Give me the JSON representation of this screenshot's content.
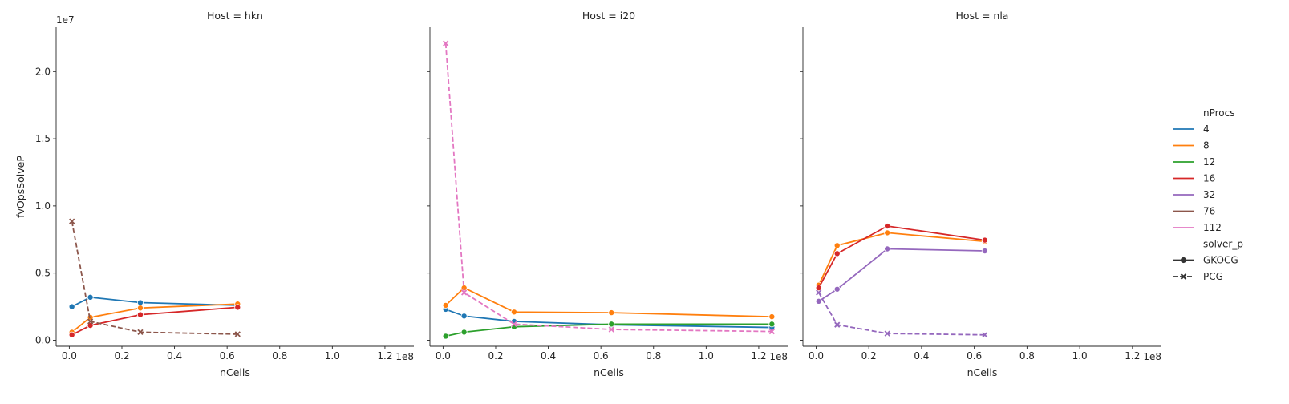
{
  "chart_data": {
    "type": "line",
    "sharey": true,
    "y_multiplier": "1e7",
    "x_multiplier": "1e8",
    "xlabel": "nCells",
    "ylabel": "fvOpsSolveP",
    "ylim": [
      -0.045,
      2.33
    ],
    "xlim": [
      -0.05,
      1.31
    ],
    "y_ticks": [
      "0.0",
      "0.5",
      "1.0",
      "1.5",
      "2.0"
    ],
    "x_ticks": [
      "0.0",
      "0.2",
      "0.4",
      "0.6",
      "0.8",
      "1.0",
      "1.2"
    ],
    "legend": {
      "placement": "right",
      "hue_title": "nProcs",
      "hue_entries": [
        {
          "label": "4",
          "color": "#1f77b4"
        },
        {
          "label": "8",
          "color": "#ff7f0e"
        },
        {
          "label": "12",
          "color": "#2ca02c"
        },
        {
          "label": "16",
          "color": "#d62728"
        },
        {
          "label": "32",
          "color": "#9467bd"
        },
        {
          "label": "76",
          "color": "#8c564b"
        },
        {
          "label": "112",
          "color": "#e377c2"
        }
      ],
      "style_title": "solver_p",
      "style_entries": [
        {
          "label": "GKOCG",
          "marker": "circle",
          "dash": "solid"
        },
        {
          "label": "PCG",
          "marker": "x",
          "dash": "dashed"
        }
      ]
    },
    "panels": [
      {
        "title": "Host = hkn",
        "series": [
          {
            "nProcs": "4",
            "solver": "GKOCG",
            "x": [
              0.01,
              0.08,
              0.27,
              0.64
            ],
            "y": [
              0.25,
              0.32,
              0.28,
              0.26
            ]
          },
          {
            "nProcs": "8",
            "solver": "GKOCG",
            "x": [
              0.01,
              0.08,
              0.27,
              0.64
            ],
            "y": [
              0.06,
              0.17,
              0.24,
              0.27
            ]
          },
          {
            "nProcs": "16",
            "solver": "GKOCG",
            "x": [
              0.01,
              0.08,
              0.27,
              0.64
            ],
            "y": [
              0.04,
              0.11,
              0.19,
              0.245
            ]
          },
          {
            "nProcs": "76",
            "solver": "PCG",
            "x": [
              0.01,
              0.08,
              0.27,
              0.64
            ],
            "y": [
              0.885,
              0.14,
              0.06,
              0.045
            ]
          }
        ]
      },
      {
        "title": "Host = i20",
        "series": [
          {
            "nProcs": "4",
            "solver": "GKOCG",
            "x": [
              0.01,
              0.08,
              0.27,
              0.64,
              1.25
            ],
            "y": [
              0.23,
              0.18,
              0.14,
              0.115,
              0.095
            ]
          },
          {
            "nProcs": "8",
            "solver": "GKOCG",
            "x": [
              0.01,
              0.08,
              0.27,
              0.64,
              1.25
            ],
            "y": [
              0.26,
              0.39,
              0.21,
              0.205,
              0.175
            ]
          },
          {
            "nProcs": "12",
            "solver": "GKOCG",
            "x": [
              0.01,
              0.08,
              0.27,
              0.64,
              1.25
            ],
            "y": [
              0.03,
              0.06,
              0.1,
              0.12,
              0.12
            ]
          },
          {
            "nProcs": "112",
            "solver": "PCG",
            "x": [
              0.01,
              0.08,
              0.27,
              0.64,
              1.25
            ],
            "y": [
              2.21,
              0.355,
              0.12,
              0.08,
              0.065
            ]
          }
        ]
      },
      {
        "title": "Host = nla",
        "series": [
          {
            "nProcs": "8",
            "solver": "GKOCG",
            "x": [
              0.01,
              0.08,
              0.27,
              0.64
            ],
            "y": [
              0.41,
              0.705,
              0.8,
              0.735
            ]
          },
          {
            "nProcs": "16",
            "solver": "GKOCG",
            "x": [
              0.01,
              0.08,
              0.27,
              0.64
            ],
            "y": [
              0.39,
              0.645,
              0.85,
              0.745
            ]
          },
          {
            "nProcs": "32",
            "solver": "GKOCG",
            "x": [
              0.01,
              0.08,
              0.27,
              0.64
            ],
            "y": [
              0.29,
              0.38,
              0.68,
              0.665
            ]
          },
          {
            "nProcs": "32",
            "solver": "PCG",
            "x": [
              0.01,
              0.08,
              0.27,
              0.64
            ],
            "y": [
              0.355,
              0.115,
              0.05,
              0.04
            ]
          }
        ]
      }
    ]
  }
}
